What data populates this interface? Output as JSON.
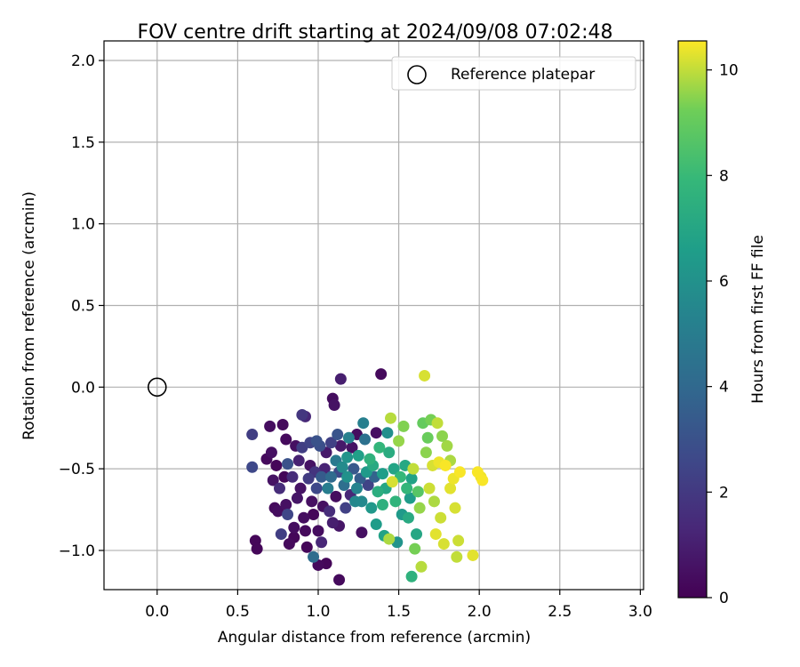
{
  "chart_data": {
    "type": "scatter",
    "title": "FOV centre drift starting at 2024/09/08 07:02:48",
    "xlabel": "Angular distance from reference (arcmin)",
    "ylabel": "Rotation from reference (arcmin)",
    "xlim": [
      -0.33,
      3.02
    ],
    "ylim": [
      -1.24,
      2.12
    ],
    "xticks": [
      0.0,
      0.5,
      1.0,
      1.5,
      2.0,
      2.5,
      3.0
    ],
    "xtick_labels": [
      "0.0",
      "0.5",
      "1.0",
      "1.5",
      "2.0",
      "2.5",
      "3.0"
    ],
    "yticks": [
      -1.0,
      -0.5,
      0.0,
      0.5,
      1.0,
      1.5,
      2.0
    ],
    "ytick_labels": [
      "−1.0",
      "−0.5",
      "0.0",
      "0.5",
      "1.0",
      "1.5",
      "2.0"
    ],
    "grid": true,
    "legend": {
      "placement": "top-right",
      "entries": [
        {
          "label": "Reference platepar",
          "marker": "open-circle",
          "color": "#000000"
        }
      ]
    },
    "reference_point": {
      "x": 0.0,
      "y": 0.0
    },
    "colorbar": {
      "label": "Hours from first FF file",
      "colormap": "viridis",
      "range": [
        0,
        10.55
      ],
      "ticks": [
        0,
        2,
        4,
        6,
        8,
        10
      ],
      "tick_labels": [
        "0",
        "2",
        "4",
        "6",
        "8",
        "10"
      ]
    },
    "points": [
      [
        0.59,
        -0.29,
        2.2
      ],
      [
        0.59,
        -0.49,
        2.6
      ],
      [
        0.61,
        -0.94,
        0.2
      ],
      [
        0.62,
        -0.99,
        0.2
      ],
      [
        0.68,
        -0.44,
        0.3
      ],
      [
        0.7,
        -0.24,
        0.4
      ],
      [
        0.71,
        -0.4,
        0.5
      ],
      [
        0.72,
        -0.57,
        0.6
      ],
      [
        0.73,
        -0.74,
        0.3
      ],
      [
        0.74,
        -0.48,
        0.2
      ],
      [
        0.75,
        -0.76,
        0.4
      ],
      [
        0.76,
        -0.62,
        1.5
      ],
      [
        0.77,
        -0.9,
        2.2
      ],
      [
        0.78,
        -0.23,
        0.3
      ],
      [
        0.79,
        -0.55,
        0.2
      ],
      [
        0.8,
        -0.72,
        0.5
      ],
      [
        0.8,
        -0.32,
        0.3
      ],
      [
        0.81,
        -0.47,
        3.0
      ],
      [
        0.81,
        -0.78,
        2.5
      ],
      [
        0.82,
        -0.96,
        0.3
      ],
      [
        0.84,
        -0.55,
        1.5
      ],
      [
        0.85,
        -0.86,
        0.4
      ],
      [
        0.85,
        -0.92,
        0.2
      ],
      [
        0.86,
        -0.36,
        0.5
      ],
      [
        0.87,
        -0.68,
        0.7
      ],
      [
        0.88,
        -0.45,
        1.1
      ],
      [
        0.89,
        -0.62,
        0.6
      ],
      [
        0.9,
        -0.37,
        2.2
      ],
      [
        0.9,
        -0.17,
        1.9
      ],
      [
        0.91,
        -0.8,
        0.4
      ],
      [
        0.92,
        -0.18,
        1.3
      ],
      [
        0.92,
        -0.88,
        0.3
      ],
      [
        0.93,
        -0.98,
        0.2
      ],
      [
        0.94,
        -0.56,
        2.1
      ],
      [
        0.95,
        -0.34,
        2.4
      ],
      [
        0.95,
        -0.48,
        0.6
      ],
      [
        0.96,
        -0.7,
        0.5
      ],
      [
        0.97,
        -0.78,
        0.2
      ],
      [
        0.97,
        -1.04,
        4.2
      ],
      [
        0.98,
        -0.52,
        1.8
      ],
      [
        0.99,
        -0.33,
        3.0
      ],
      [
        0.99,
        -0.62,
        2.6
      ],
      [
        1.0,
        -0.88,
        0.4
      ],
      [
        1.0,
        -1.09,
        0.3
      ],
      [
        1.01,
        -0.36,
        2.9
      ],
      [
        1.02,
        -0.55,
        3.4
      ],
      [
        1.02,
        -0.95,
        1.3
      ],
      [
        1.03,
        -0.73,
        0.5
      ],
      [
        1.04,
        -0.5,
        1.2
      ],
      [
        1.05,
        -0.4,
        0.8
      ],
      [
        1.05,
        -1.08,
        0.2
      ],
      [
        1.06,
        -0.62,
        5.0
      ],
      [
        1.07,
        -0.76,
        1.5
      ],
      [
        1.08,
        -0.34,
        2.3
      ],
      [
        1.08,
        -0.55,
        4.1
      ],
      [
        1.09,
        -0.83,
        1.0
      ],
      [
        1.09,
        -0.07,
        0.4
      ],
      [
        1.1,
        -0.11,
        0.6
      ],
      [
        1.11,
        -0.45,
        4.8
      ],
      [
        1.11,
        -0.67,
        0.4
      ],
      [
        1.12,
        -0.29,
        3.1
      ],
      [
        1.13,
        -0.52,
        2.7
      ],
      [
        1.13,
        -1.18,
        0.3
      ],
      [
        1.13,
        -0.85,
        0.7
      ],
      [
        1.14,
        -0.36,
        0.8
      ],
      [
        1.14,
        0.05,
        1.0
      ],
      [
        1.15,
        -0.49,
        5.7
      ],
      [
        1.16,
        -0.6,
        4.3
      ],
      [
        1.17,
        -0.74,
        2.3
      ],
      [
        1.18,
        -0.43,
        6.1
      ],
      [
        1.18,
        -0.55,
        6.0
      ],
      [
        1.19,
        -0.31,
        5.2
      ],
      [
        1.2,
        -0.66,
        1.3
      ],
      [
        1.21,
        -0.37,
        0.6
      ],
      [
        1.22,
        -0.5,
        3.3
      ],
      [
        1.23,
        -0.7,
        5.5
      ],
      [
        1.24,
        -0.29,
        0.4
      ],
      [
        1.24,
        -0.62,
        5.3
      ],
      [
        1.25,
        -0.42,
        6.7
      ],
      [
        1.26,
        -0.56,
        3.5
      ],
      [
        1.27,
        -0.7,
        5.6
      ],
      [
        1.27,
        -0.89,
        0.5
      ],
      [
        1.28,
        -0.22,
        5.1
      ],
      [
        1.29,
        -0.32,
        4.4
      ],
      [
        1.3,
        -0.52,
        6.4
      ],
      [
        1.31,
        -0.6,
        2.4
      ],
      [
        1.32,
        -0.44,
        7.6
      ],
      [
        1.33,
        -0.74,
        6.3
      ],
      [
        1.34,
        -0.48,
        7.2
      ],
      [
        1.35,
        -0.55,
        3.8
      ],
      [
        1.36,
        -0.84,
        6.5
      ],
      [
        1.36,
        -0.28,
        0.5
      ],
      [
        1.37,
        -0.64,
        7.4
      ],
      [
        1.38,
        -0.37,
        7.8
      ],
      [
        1.39,
        0.08,
        0.3
      ],
      [
        1.4,
        -0.72,
        7.5
      ],
      [
        1.4,
        -0.53,
        6.6
      ],
      [
        1.41,
        -0.91,
        6.8
      ],
      [
        1.42,
        -0.62,
        7.0
      ],
      [
        1.43,
        -0.28,
        5.9
      ],
      [
        1.44,
        -0.93,
        9.8
      ],
      [
        1.44,
        -0.4,
        7.3
      ],
      [
        1.45,
        -0.19,
        9.9
      ],
      [
        1.46,
        -0.58,
        10.2
      ],
      [
        1.47,
        -0.5,
        6.9
      ],
      [
        1.48,
        -0.7,
        7.7
      ],
      [
        1.49,
        -0.95,
        6.1
      ],
      [
        1.5,
        -0.33,
        9.6
      ],
      [
        1.51,
        -0.55,
        7.9
      ],
      [
        1.52,
        -0.78,
        6.4
      ],
      [
        1.53,
        -0.24,
        9.4
      ],
      [
        1.54,
        -0.48,
        7.1
      ],
      [
        1.55,
        -0.62,
        7.8
      ],
      [
        1.56,
        -0.8,
        7.2
      ],
      [
        1.57,
        -0.68,
        6.5
      ],
      [
        1.58,
        -0.56,
        6.8
      ],
      [
        1.58,
        -1.16,
        7.6
      ],
      [
        1.59,
        -0.5,
        10.0
      ],
      [
        1.6,
        -0.99,
        9.3
      ],
      [
        1.61,
        -0.9,
        7.0
      ],
      [
        1.62,
        -0.64,
        8.7
      ],
      [
        1.63,
        -0.74,
        9.6
      ],
      [
        1.64,
        -1.1,
        9.9
      ],
      [
        1.65,
        -0.22,
        9.0
      ],
      [
        1.66,
        0.07,
        10.2
      ],
      [
        1.67,
        -0.4,
        9.5
      ],
      [
        1.68,
        -0.31,
        9.1
      ],
      [
        1.69,
        -0.62,
        10.1
      ],
      [
        1.7,
        -0.2,
        9.3
      ],
      [
        1.71,
        -0.48,
        10.2
      ],
      [
        1.72,
        -0.7,
        9.8
      ],
      [
        1.73,
        -0.9,
        10.3
      ],
      [
        1.74,
        -0.22,
        10.0
      ],
      [
        1.75,
        -0.46,
        10.4
      ],
      [
        1.76,
        -0.8,
        10.1
      ],
      [
        1.77,
        -0.3,
        9.5
      ],
      [
        1.78,
        -0.96,
        10.2
      ],
      [
        1.79,
        -0.48,
        10.5
      ],
      [
        1.8,
        -0.36,
        9.7
      ],
      [
        1.82,
        -0.62,
        10.3
      ],
      [
        1.82,
        -0.45,
        9.8
      ],
      [
        1.84,
        -0.56,
        10.4
      ],
      [
        1.85,
        -0.74,
        10.2
      ],
      [
        1.86,
        -1.04,
        10.0
      ],
      [
        1.87,
        -0.94,
        10.1
      ],
      [
        1.88,
        -0.52,
        10.5
      ],
      [
        1.96,
        -1.03,
        10.3
      ],
      [
        1.99,
        -0.52,
        10.5
      ],
      [
        2.01,
        -0.55,
        10.4
      ],
      [
        2.02,
        -0.57,
        10.5
      ]
    ]
  }
}
